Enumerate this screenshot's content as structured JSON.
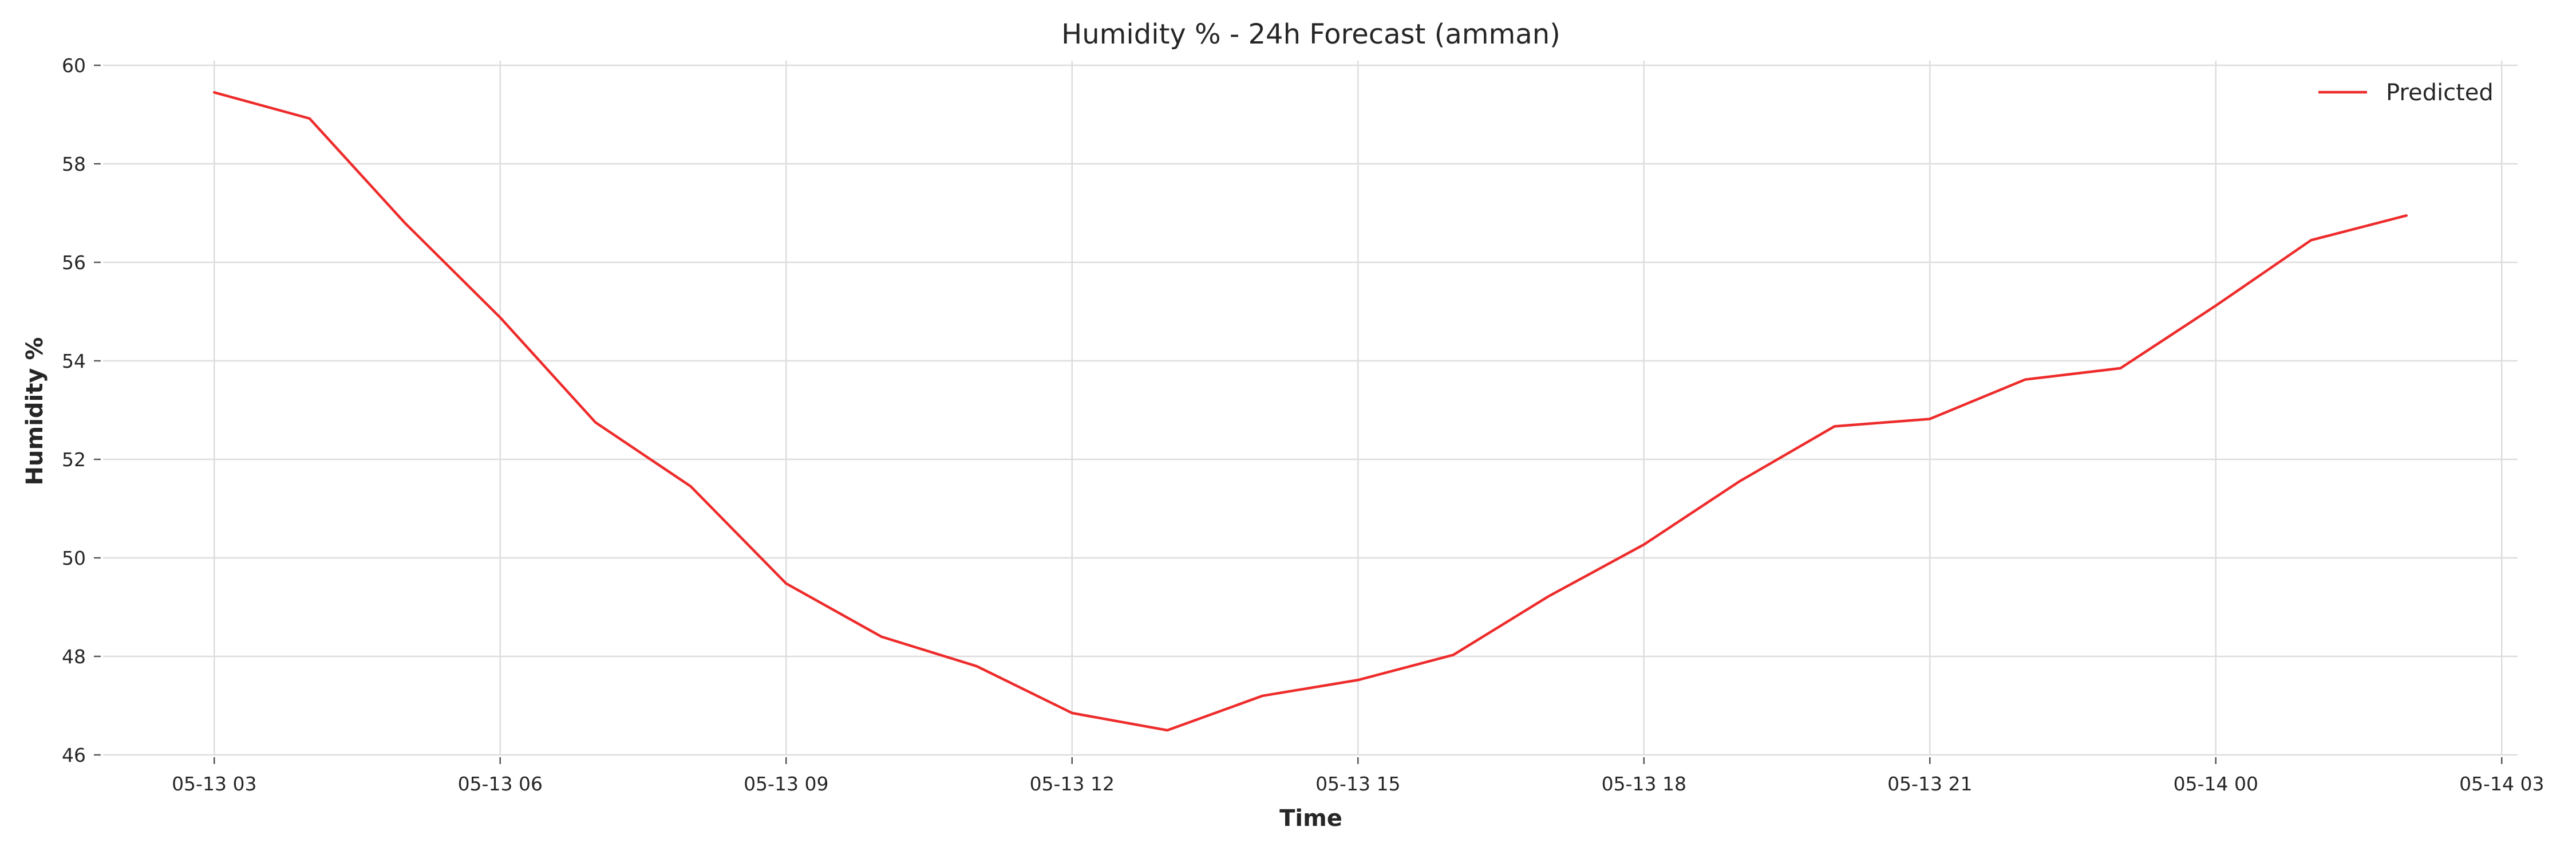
{
  "chart_data": {
    "type": "line",
    "title": "Humidity % - 24h Forecast (amman)",
    "xlabel": "Time",
    "ylabel": "Humidity %",
    "ylim": [
      46,
      60
    ],
    "xlim": [
      "05-13 01:50",
      "05-14 03:10"
    ],
    "grid": true,
    "legend_position": "top-right",
    "x_ticks": [
      {
        "label": "05-13 03",
        "time": "05-13 03:00"
      },
      {
        "label": "05-13 06",
        "time": "05-13 06:00"
      },
      {
        "label": "05-13 09",
        "time": "05-13 09:00"
      },
      {
        "label": "05-13 12",
        "time": "05-13 12:00"
      },
      {
        "label": "05-13 15",
        "time": "05-13 15:00"
      },
      {
        "label": "05-13 18",
        "time": "05-13 18:00"
      },
      {
        "label": "05-13 21",
        "time": "05-13 21:00"
      },
      {
        "label": "05-14 00",
        "time": "05-14 00:00"
      },
      {
        "label": "05-14 03",
        "time": "05-14 03:00"
      }
    ],
    "y_ticks": [
      46,
      48,
      50,
      52,
      54,
      56,
      58,
      60
    ],
    "series": [
      {
        "name": "Predicted",
        "color": "#ee2b2b",
        "x": [
          "05-13 03:00",
          "05-13 04:00",
          "05-13 05:00",
          "05-13 06:00",
          "05-13 07:00",
          "05-13 08:00",
          "05-13 09:00",
          "05-13 10:00",
          "05-13 11:00",
          "05-13 12:00",
          "05-13 13:00",
          "05-13 14:00",
          "05-13 15:00",
          "05-13 16:00",
          "05-13 17:00",
          "05-13 18:00",
          "05-13 19:00",
          "05-13 20:00",
          "05-13 21:00",
          "05-13 22:00",
          "05-13 23:00",
          "05-14 00:00",
          "05-14 01:00",
          "05-14 02:00"
        ],
        "values": [
          59.45,
          58.92,
          56.8,
          54.88,
          52.75,
          51.45,
          49.48,
          48.4,
          47.8,
          46.85,
          46.5,
          47.2,
          47.52,
          48.03,
          49.22,
          50.27,
          51.55,
          52.67,
          52.82,
          53.62,
          53.85,
          55.12,
          56.45,
          56.95
        ]
      }
    ]
  }
}
